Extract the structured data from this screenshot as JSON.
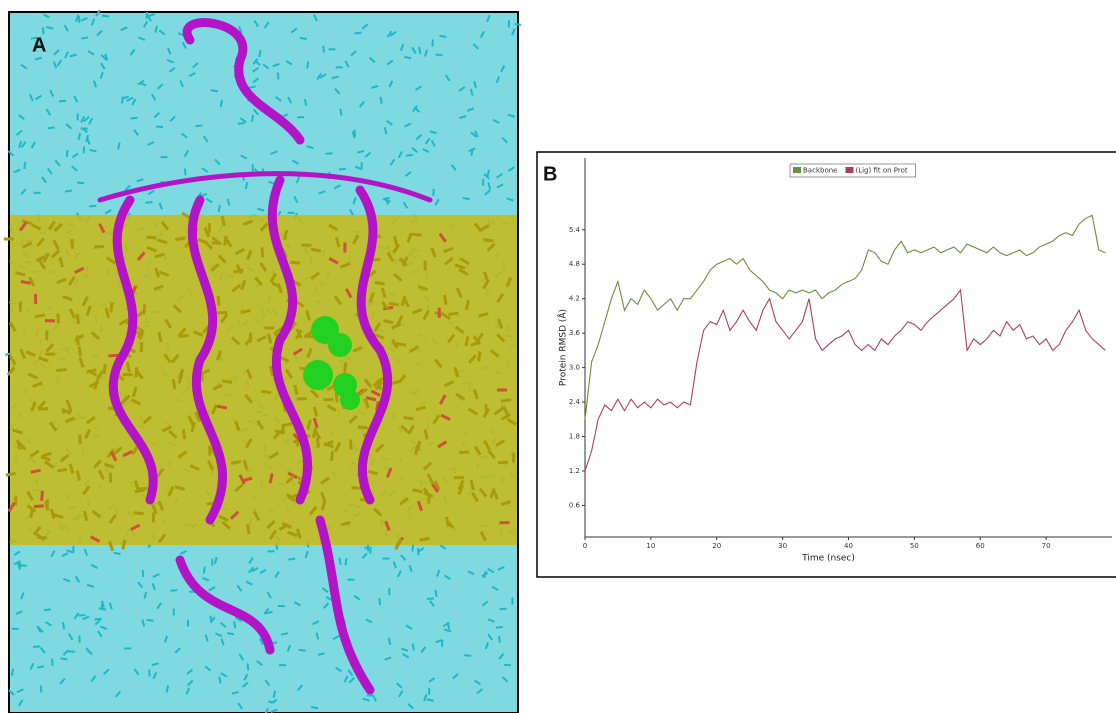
{
  "panels": [
    {
      "label": "A"
    },
    {
      "label": "B"
    }
  ],
  "chart_data": {
    "type": "line",
    "x_label": "Time (nsec)",
    "y_label": "Protein RMSD (Å)",
    "legend": "top",
    "x": [
      0,
      1,
      2,
      3,
      4,
      5,
      6,
      7,
      8,
      9,
      10,
      11,
      12,
      13,
      14,
      15,
      16,
      17,
      18,
      19,
      20,
      21,
      22,
      23,
      24,
      25,
      26,
      27,
      28,
      29,
      30,
      31,
      32,
      33,
      34,
      35,
      36,
      37,
      38,
      39,
      40,
      41,
      42,
      43,
      44,
      45,
      46,
      47,
      48,
      49,
      50,
      51,
      52,
      53,
      54,
      55,
      56,
      57,
      58,
      59,
      60,
      61,
      62,
      63,
      64,
      65,
      66,
      67,
      68,
      69,
      70,
      71,
      72,
      73,
      74,
      75,
      76,
      77,
      78,
      79
    ],
    "series": [
      {
        "name": "Backbone",
        "color": "#6b8f3a",
        "values": [
          2.1,
          3.1,
          3.4,
          3.8,
          4.2,
          4.5,
          4.0,
          4.2,
          4.1,
          4.35,
          4.2,
          4.0,
          4.1,
          4.2,
          4.0,
          4.2,
          4.2,
          4.35,
          4.5,
          4.7,
          4.8,
          4.85,
          4.9,
          4.8,
          4.9,
          4.7,
          4.6,
          4.5,
          4.35,
          4.3,
          4.2,
          4.35,
          4.3,
          4.35,
          4.3,
          4.35,
          4.2,
          4.3,
          4.35,
          4.45,
          4.5,
          4.55,
          4.7,
          5.05,
          5.0,
          4.85,
          4.8,
          5.05,
          5.2,
          5.0,
          5.05,
          5.0,
          5.05,
          5.1,
          5.0,
          5.05,
          5.1,
          5.0,
          5.15,
          5.1,
          5.05,
          5.0,
          5.1,
          5.0,
          4.95,
          5.0,
          5.05,
          4.95,
          5.0,
          5.1,
          5.15,
          5.2,
          5.3,
          5.35,
          5.3,
          5.5,
          5.6,
          5.65,
          5.05,
          5.0
        ]
      },
      {
        "name": "(Lig) fit on Prot",
        "color": "#a8405f",
        "values": [
          1.2,
          1.55,
          2.1,
          2.35,
          2.25,
          2.45,
          2.25,
          2.45,
          2.3,
          2.4,
          2.3,
          2.45,
          2.35,
          2.4,
          2.3,
          2.4,
          2.35,
          3.1,
          3.65,
          3.8,
          3.75,
          4.0,
          3.65,
          3.8,
          4.0,
          3.8,
          3.65,
          4.0,
          4.2,
          3.8,
          3.65,
          3.5,
          3.65,
          3.8,
          4.2,
          3.5,
          3.3,
          3.4,
          3.5,
          3.55,
          3.65,
          3.4,
          3.3,
          3.4,
          3.3,
          3.5,
          3.4,
          3.55,
          3.65,
          3.8,
          3.75,
          3.65,
          3.8,
          3.9,
          4.0,
          4.1,
          4.2,
          4.35,
          3.3,
          3.5,
          3.4,
          3.5,
          3.65,
          3.55,
          3.8,
          3.65,
          3.75,
          3.5,
          3.55,
          3.4,
          3.5,
          3.3,
          3.4,
          3.65,
          3.8,
          4.0,
          3.65,
          3.5,
          3.4,
          3.3
        ]
      }
    ],
    "xlim": [
      0,
      80
    ],
    "xticks": [
      0,
      10,
      20,
      30,
      40,
      50,
      60,
      70
    ],
    "ylim": [
      0.05,
      6.65
    ],
    "yticks": [
      0.6,
      1.2,
      1.8,
      2.4,
      {
        "value": 3,
        "label": "3.0"
      },
      3.6,
      4.2,
      4.8,
      5.4
    ]
  }
}
